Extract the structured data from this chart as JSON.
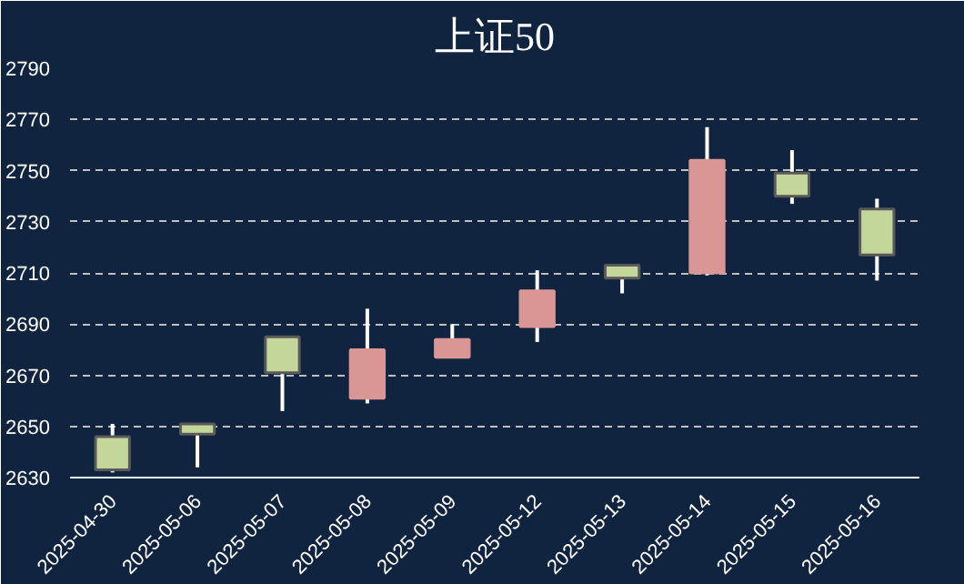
{
  "chart_data": {
    "type": "candlestick",
    "title": "上证50",
    "categories": [
      "2025-04-30",
      "2025-05-06",
      "2025-05-07",
      "2025-05-08",
      "2025-05-09",
      "2025-05-12",
      "2025-05-13",
      "2025-05-14",
      "2025-05-15",
      "2025-05-16"
    ],
    "ohlc": [
      [
        2646,
        2651,
        2632,
        2633
      ],
      [
        2651,
        2651,
        2634,
        2647
      ],
      [
        2685,
        2685,
        2656,
        2671
      ],
      [
        2661,
        2696,
        2659,
        2680
      ],
      [
        2677,
        2690,
        2677,
        2684
      ],
      [
        2689,
        2711,
        2683,
        2703
      ],
      [
        2713,
        2713,
        2702,
        2708
      ],
      [
        2710,
        2767,
        2709,
        2754
      ],
      [
        2749,
        2758,
        2737,
        2740
      ],
      [
        2735,
        2739,
        2707,
        2717
      ]
    ],
    "colors": [
      "#c4d79b",
      "#c4d79b",
      "#c4d79b",
      "#da9694",
      "#da9694",
      "#da9694",
      "#c4d79b",
      "#da9694",
      "#c4d79b",
      "#c4d79b"
    ],
    "ylim": [
      2630,
      2790
    ],
    "yticks": [
      2630,
      2650,
      2670,
      2690,
      2710,
      2730,
      2750,
      2770,
      2790
    ],
    "grid": "y"
  }
}
